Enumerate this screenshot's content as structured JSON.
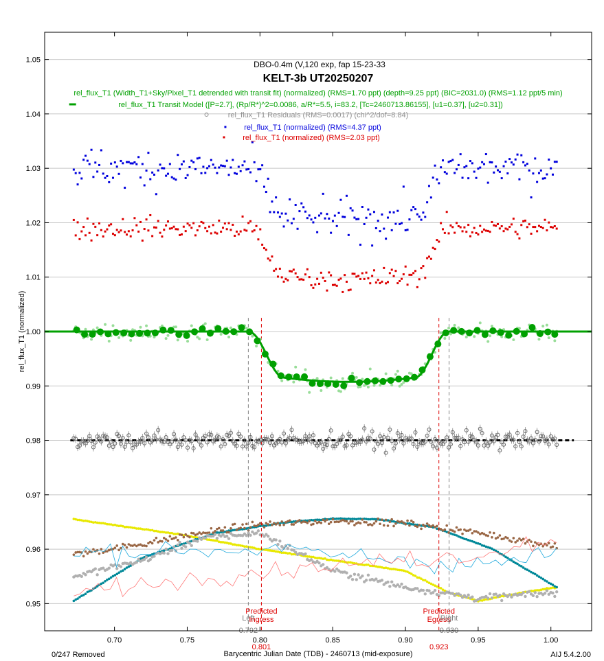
{
  "chart_data": {
    "type": "scatter",
    "subtitle": "DBO-0.4m (V,120 exp, fap 15-23-33",
    "title": "KELT-3b UT20250207",
    "legend": [
      {
        "label": "rel_flux_T1 (Width_T1+Sky/Pixel_T1 detrended with transit fit) (normalized) (RMS=1.70 ppt) (depth=9.25 ppt) (BIC=2031.0) (RMS=1.12 ppt/5 min)",
        "color": "#00a000",
        "marker": "none"
      },
      {
        "label": "rel_flux_T1 Transit Model ([P=2.7], (Rp/R*)^2=0.0086, a/R*=5.5, i=83.2, [Tc=2460713.86155], [u1=0.37], [u2=0.31])",
        "color": "#00a000",
        "marker": "line"
      },
      {
        "label": "rel_flux_T1 Residuals (RMS=0.0017) (chi^2/dof=8.84)",
        "color": "#909090",
        "marker": "circle"
      },
      {
        "label": "rel_flux_T1 (normalized) (RMS=4.37 ppt)",
        "color": "#0000dd",
        "marker": "dot"
      },
      {
        "label": "rel_flux_T1 (normalized) (RMS=2.03 ppt)",
        "color": "#dd0000",
        "marker": "dot"
      }
    ],
    "xlabel": "Barycentric Julian Date (TDB) - 2460713 (mid-exposure)",
    "ylabel": "rel_flux_T1 (normalized)",
    "xlim": [
      0.652,
      1.028
    ],
    "ylim": [
      0.945,
      1.055
    ],
    "xticks": [
      0.7,
      0.75,
      0.8,
      0.85,
      0.9,
      0.95,
      1.0
    ],
    "xtick_labels": [
      "0.70",
      "0.75",
      "0.80",
      "0.85",
      "0.90",
      "0.95",
      "1.00"
    ],
    "yticks": [
      0.95,
      0.96,
      0.97,
      0.98,
      0.99,
      1.0,
      1.01,
      1.02,
      1.03,
      1.04,
      1.05
    ],
    "ytick_labels": [
      "0.95",
      "0.96",
      "0.97",
      "0.98",
      "0.99",
      "1.00",
      "1.01",
      "1.02",
      "1.03",
      "1.04",
      "1.05"
    ],
    "grid": true,
    "markers": [
      {
        "x": 0.792,
        "label": "Left",
        "value": "0.792",
        "color": "#808080"
      },
      {
        "x": 0.801,
        "label": "Predicted Ingress",
        "value": "0.801",
        "color": "#dd0000"
      },
      {
        "x": 0.923,
        "label": "Predicted Egress",
        "value": "0.923",
        "color": "#dd0000"
      },
      {
        "x": 0.93,
        "label": "Right",
        "value": "0.930",
        "color": "#808080"
      }
    ],
    "model": {
      "baseline": 1.0,
      "depth": 0.00925,
      "t_left": 0.792,
      "t_ingress_end": 0.816,
      "t_egress_start": 0.907,
      "t_right": 0.93,
      "t_mid": 0.8615
    },
    "series": [
      {
        "name": "rel_flux_T1 (normalized) (RMS=4.37 ppt)",
        "color": "#0000dd",
        "x_start": 0.672,
        "x_end": 1.004,
        "n": 247,
        "baseline": 1.03,
        "depth": 0.0095,
        "scatter": 0.0035
      },
      {
        "name": "rel_flux_T1 (normalized) (RMS=2.03 ppt)",
        "color": "#dd0000",
        "x_start": 0.672,
        "x_end": 1.004,
        "n": 247,
        "baseline": 1.019,
        "depth": 0.0095,
        "scatter": 0.002
      },
      {
        "name": "rel_flux_T1 (Width_T1+Sky/Pixel_T1 detrended with transit fit) (normalized) (RMS=1.70 ppt) (depth=9.25 ppt) (BIC=2031.0) (RMS=1.12 ppt/5 min)",
        "color": "#00a000",
        "x_start": 0.672,
        "x_end": 1.004,
        "n": 247,
        "baseline": 1.0,
        "depth": 0.00925,
        "scatter": 0.0017
      },
      {
        "name": "rel_flux_T1 Residuals (RMS=0.0017) (chi^2/dof=8.84)",
        "color": "#808080",
        "x_start": 0.672,
        "x_end": 1.004,
        "n": 247,
        "baseline": 0.98,
        "depth": 0.0,
        "scatter": 0.0017
      }
    ],
    "aux_series": [
      {
        "name": "yellow",
        "color": "#e8e800",
        "points": [
          [
            0.672,
            0.9655
          ],
          [
            0.75,
            0.9625
          ],
          [
            0.8,
            0.96
          ],
          [
            0.85,
            0.958
          ],
          [
            0.9,
            0.956
          ],
          [
            0.93,
            0.952
          ],
          [
            0.95,
            0.9505
          ],
          [
            0.98,
            0.952
          ],
          [
            1.004,
            0.953
          ]
        ]
      },
      {
        "name": "teal",
        "color": "#008898",
        "points": [
          [
            0.672,
            0.9505
          ],
          [
            0.72,
            0.9585
          ],
          [
            0.77,
            0.963
          ],
          [
            0.82,
            0.965
          ],
          [
            0.85,
            0.9656
          ],
          [
            0.88,
            0.9655
          ],
          [
            0.92,
            0.964
          ],
          [
            0.96,
            0.96
          ],
          [
            1.004,
            0.953
          ]
        ]
      },
      {
        "name": "brown",
        "color": "#996644",
        "points": [
          [
            0.672,
            0.959
          ],
          [
            0.72,
            0.961
          ],
          [
            0.76,
            0.963
          ],
          [
            0.8,
            0.9645
          ],
          [
            0.85,
            0.9652
          ],
          [
            0.9,
            0.9648
          ],
          [
            0.95,
            0.963
          ],
          [
            1.004,
            0.9605
          ]
        ]
      },
      {
        "name": "gray",
        "color": "#b0b0b0",
        "points": [
          [
            0.672,
            0.955
          ],
          [
            0.72,
            0.958
          ],
          [
            0.76,
            0.962
          ],
          [
            0.8,
            0.963
          ],
          [
            0.85,
            0.956
          ],
          [
            0.9,
            0.953
          ],
          [
            0.95,
            0.951
          ],
          [
            1.004,
            0.952
          ]
        ]
      }
    ]
  },
  "footer": {
    "removed": "0/247 Removed",
    "version": "AIJ 5.4.2.00"
  }
}
